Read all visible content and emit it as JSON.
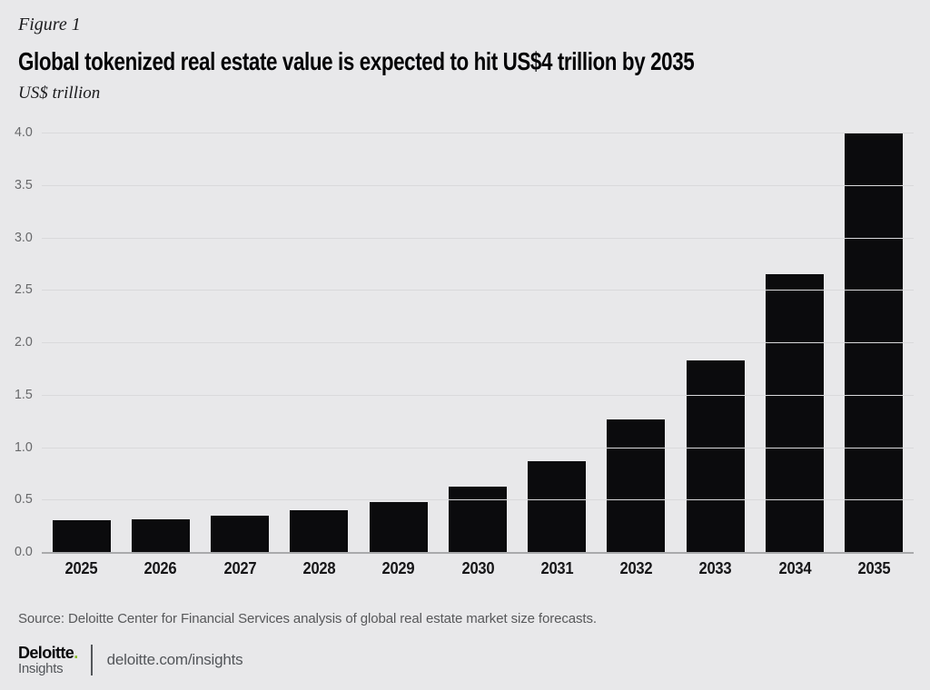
{
  "figure_label": "Figure 1",
  "title": "Global tokenized real estate value is expected to hit US$4 trillion by 2035",
  "unit_label": "US$ trillion",
  "source": "Source: Deloitte Center for Financial Services analysis of global real estate market size forecasts.",
  "footer": {
    "brand": "Deloitte",
    "brand_dot": ".",
    "brand_sub": "Insights",
    "url": "deloitte.com/insights"
  },
  "colors": {
    "background": "#e8e8ea",
    "bar": "#0b0b0d",
    "gridline": "#d9d9db",
    "axis_line": "#a9aaac",
    "tick_label": "#68696b",
    "year_label": "#161618",
    "source_text": "#57585a",
    "brand_green": "#86bc25"
  },
  "chart_data": {
    "type": "bar",
    "title": "Global tokenized real estate value is expected to hit US$4 trillion by 2035",
    "subtitle": "Figure 1",
    "xlabel": "",
    "ylabel": "US$ trillion",
    "categories": [
      "2025",
      "2026",
      "2027",
      "2028",
      "2029",
      "2030",
      "2031",
      "2032",
      "2033",
      "2034",
      "2035"
    ],
    "values": [
      0.3,
      0.31,
      0.35,
      0.4,
      0.48,
      0.62,
      0.87,
      1.26,
      1.83,
      2.65,
      4.0
    ],
    "ylim": [
      0.0,
      4.0
    ],
    "yticks": [
      0.0,
      0.5,
      1.0,
      1.5,
      2.0,
      2.5,
      3.0,
      3.5,
      4.0
    ],
    "grid": true,
    "legend": false,
    "bar_color": "#0b0b0d"
  }
}
